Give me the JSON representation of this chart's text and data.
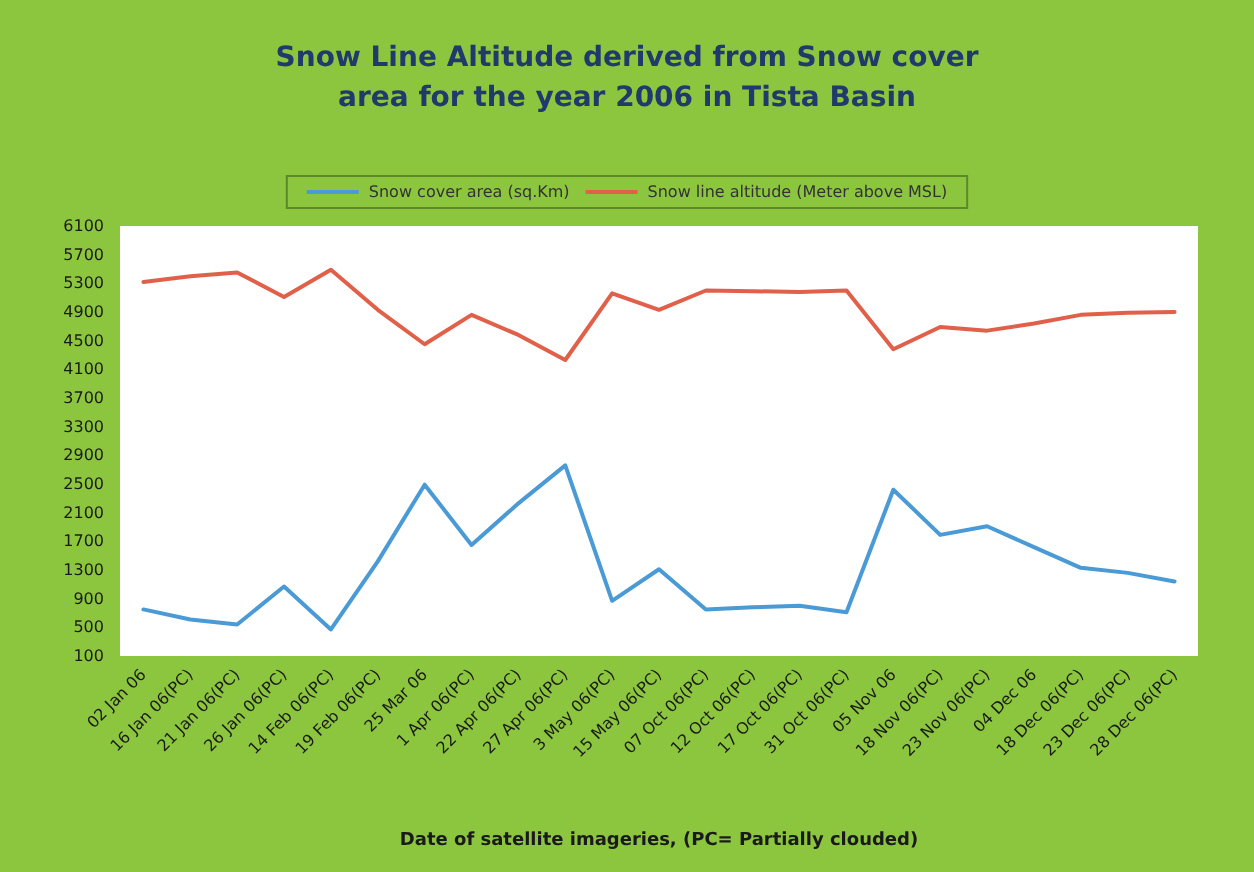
{
  "chart_data": {
    "type": "line",
    "title": "Snow Line Altitude derived from Snow cover\narea for the year 2006 in Tista Basin",
    "xlabel": "Date of satellite imageries, (PC= Partially clouded)",
    "categories": [
      "02 Jan 06",
      "16 Jan 06(PC)",
      "21 Jan 06(PC)",
      "26 Jan 06(PC)",
      "14 Feb 06(PC)",
      "19 Feb 06(PC)",
      "25 Mar 06",
      "1 Apr 06(PC)",
      "22 Apr 06(PC)",
      "27 Apr 06(PC)",
      "3 May 06(PC)",
      "15 May 06(PC)",
      "07 Oct 06(PC)",
      "12 Oct 06(PC)",
      "17 Oct 06(PC)",
      "31 Oct 06(PC)",
      "05 Nov 06",
      "18 Nov 06(PC)",
      "23 Nov 06(PC)",
      "04 Dec 06",
      "18 Dec 06(PC)",
      "23 Dec 06(PC)",
      "28 Dec 06(PC)"
    ],
    "series": [
      {
        "name": "Snow cover area (sq.Km)",
        "color": "#4a9ad6",
        "values": [
          750,
          610,
          540,
          1070,
          470,
          1420,
          2490,
          1650,
          2230,
          2760,
          870,
          1310,
          750,
          780,
          800,
          710,
          2420,
          1790,
          1910,
          1620,
          1330,
          1260,
          1140
        ]
      },
      {
        "name": "Snow line altitude (Meter above MSL)",
        "color": "#e0604a",
        "values": [
          5320,
          5400,
          5450,
          5110,
          5490,
          4930,
          4450,
          4860,
          4580,
          4230,
          5160,
          4930,
          5200,
          5190,
          5180,
          5200,
          4380,
          4690,
          4640,
          4740,
          4860,
          4890,
          4900
        ]
      }
    ],
    "ylim": [
      100,
      6100
    ],
    "yticks": [
      100,
      500,
      900,
      1300,
      1700,
      2100,
      2500,
      2900,
      3300,
      3700,
      4100,
      4500,
      4900,
      5300,
      5700,
      6100
    ],
    "grid": false,
    "legend": "top",
    "marker": "none",
    "line_style": "solid"
  }
}
